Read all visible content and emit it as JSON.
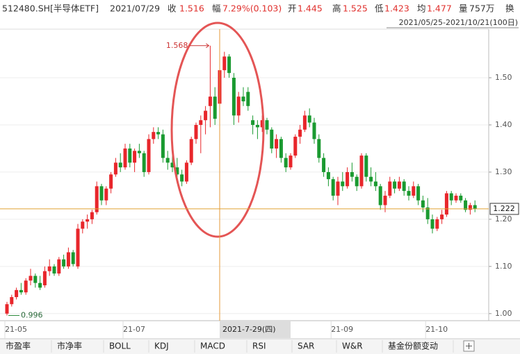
{
  "header": {
    "code": "512480.SH[半导体ETF]",
    "date": "2021/07/29",
    "close_label": "收",
    "close": 1.516,
    "change_label": "幅",
    "change": "7.29%(0.103)",
    "open_label": "开",
    "open": 1.445,
    "high_label": "高",
    "high": 1.525,
    "low_label": "低",
    "low": 1.423,
    "avg_label": "均",
    "avg": 1.477,
    "volume_label": "量",
    "volume": "757万",
    "turnover_label": "换",
    "range": "2021/05/25-2021/10/21(100日)"
  },
  "chart_data": {
    "type": "candlestick",
    "categories": [
      "21-05",
      null,
      null,
      null,
      null,
      null,
      null,
      null,
      null,
      null,
      null,
      null,
      null,
      null,
      null,
      null,
      null,
      null,
      null,
      null,
      null,
      null,
      null,
      null,
      null,
      "21-07",
      null,
      null,
      null,
      null,
      null,
      null,
      null,
      null,
      null,
      null,
      null,
      null,
      null,
      null,
      null,
      null,
      null,
      null,
      null,
      null,
      null,
      null,
      null,
      null,
      null,
      null,
      null,
      null,
      null,
      null,
      null,
      null,
      null,
      null,
      null,
      null,
      null,
      null,
      null,
      null,
      null,
      null,
      null,
      "21-09",
      null,
      null,
      null,
      null,
      null,
      null,
      null,
      null,
      null,
      null,
      null,
      null,
      null,
      null,
      null,
      null,
      null,
      null,
      null,
      "21-10",
      null,
      null,
      null,
      null,
      null,
      null,
      null,
      null,
      null,
      null
    ],
    "ohlc": [
      [
        1.0,
        1.025,
        0.996,
        1.02
      ],
      [
        1.02,
        1.04,
        1.015,
        1.035
      ],
      [
        1.035,
        1.055,
        1.03,
        1.05
      ],
      [
        1.05,
        1.065,
        1.04,
        1.045
      ],
      [
        1.045,
        1.075,
        1.04,
        1.07
      ],
      [
        1.07,
        1.095,
        1.06,
        1.08
      ],
      [
        1.08,
        1.085,
        1.055,
        1.065
      ],
      [
        1.065,
        1.08,
        1.05,
        1.055
      ],
      [
        1.06,
        1.1,
        1.055,
        1.09
      ],
      [
        1.09,
        1.115,
        1.08,
        1.1
      ],
      [
        1.1,
        1.105,
        1.08,
        1.085
      ],
      [
        1.085,
        1.12,
        1.08,
        1.115
      ],
      [
        1.115,
        1.125,
        1.095,
        1.1
      ],
      [
        1.1,
        1.14,
        1.095,
        1.13
      ],
      [
        1.13,
        1.135,
        1.1,
        1.105
      ],
      [
        1.1,
        1.19,
        1.095,
        1.18
      ],
      [
        1.18,
        1.2,
        1.17,
        1.195
      ],
      [
        1.195,
        1.21,
        1.18,
        1.2
      ],
      [
        1.2,
        1.22,
        1.19,
        1.215
      ],
      [
        1.215,
        1.28,
        1.21,
        1.27
      ],
      [
        1.27,
        1.275,
        1.23,
        1.24
      ],
      [
        1.24,
        1.27,
        1.23,
        1.265
      ],
      [
        1.265,
        1.3,
        1.255,
        1.295
      ],
      [
        1.295,
        1.33,
        1.29,
        1.32
      ],
      [
        1.32,
        1.34,
        1.3,
        1.31
      ],
      [
        1.31,
        1.36,
        1.305,
        1.35
      ],
      [
        1.35,
        1.36,
        1.31,
        1.32
      ],
      [
        1.32,
        1.35,
        1.3,
        1.345
      ],
      [
        1.345,
        1.36,
        1.33,
        1.34
      ],
      [
        1.34,
        1.345,
        1.29,
        1.3
      ],
      [
        1.3,
        1.38,
        1.295,
        1.37
      ],
      [
        1.37,
        1.395,
        1.36,
        1.385
      ],
      [
        1.385,
        1.395,
        1.37,
        1.38
      ],
      [
        1.38,
        1.39,
        1.32,
        1.33
      ],
      [
        1.33,
        1.345,
        1.305,
        1.32
      ],
      [
        1.32,
        1.335,
        1.3,
        1.31
      ],
      [
        1.31,
        1.33,
        1.29,
        1.295
      ],
      [
        1.295,
        1.305,
        1.27,
        1.28
      ],
      [
        1.28,
        1.325,
        1.275,
        1.32
      ],
      [
        1.32,
        1.375,
        1.315,
        1.37
      ],
      [
        1.37,
        1.405,
        1.36,
        1.4
      ],
      [
        1.4,
        1.42,
        1.34,
        1.41
      ],
      [
        1.41,
        1.44,
        1.38,
        1.43
      ],
      [
        1.44,
        1.568,
        1.395,
        1.46
      ],
      [
        1.46,
        1.48,
        1.4,
        1.413
      ],
      [
        1.445,
        1.525,
        1.423,
        1.516
      ],
      [
        1.516,
        1.555,
        1.5,
        1.545
      ],
      [
        1.545,
        1.55,
        1.5,
        1.51
      ],
      [
        1.5,
        1.51,
        1.4,
        1.42
      ],
      [
        1.42,
        1.47,
        1.405,
        1.46
      ],
      [
        1.46,
        1.48,
        1.44,
        1.45
      ],
      [
        1.47,
        1.48,
        1.43,
        1.44
      ],
      [
        1.41,
        1.42,
        1.38,
        1.4
      ],
      [
        1.4,
        1.41,
        1.37,
        1.395
      ],
      [
        1.395,
        1.42,
        1.385,
        1.41
      ],
      [
        1.41,
        1.415,
        1.38,
        1.39
      ],
      [
        1.39,
        1.395,
        1.34,
        1.35
      ],
      [
        1.35,
        1.38,
        1.33,
        1.37
      ],
      [
        1.37,
        1.375,
        1.32,
        1.33
      ],
      [
        1.33,
        1.34,
        1.3,
        1.31
      ],
      [
        1.31,
        1.34,
        1.305,
        1.335
      ],
      [
        1.335,
        1.38,
        1.33,
        1.375
      ],
      [
        1.375,
        1.4,
        1.36,
        1.39
      ],
      [
        1.39,
        1.43,
        1.385,
        1.42
      ],
      [
        1.42,
        1.435,
        1.395,
        1.405
      ],
      [
        1.405,
        1.415,
        1.36,
        1.37
      ],
      [
        1.37,
        1.38,
        1.32,
        1.33
      ],
      [
        1.33,
        1.34,
        1.29,
        1.3
      ],
      [
        1.3,
        1.31,
        1.27,
        1.285
      ],
      [
        1.285,
        1.29,
        1.24,
        1.25
      ],
      [
        1.25,
        1.29,
        1.23,
        1.28
      ],
      [
        1.28,
        1.3,
        1.26,
        1.27
      ],
      [
        1.27,
        1.31,
        1.265,
        1.3
      ],
      [
        1.3,
        1.32,
        1.28,
        1.29
      ],
      [
        1.29,
        1.295,
        1.26,
        1.27
      ],
      [
        1.27,
        1.34,
        1.265,
        1.335
      ],
      [
        1.335,
        1.34,
        1.28,
        1.29
      ],
      [
        1.29,
        1.31,
        1.27,
        1.28
      ],
      [
        1.28,
        1.3,
        1.26,
        1.27
      ],
      [
        1.27,
        1.275,
        1.22,
        1.23
      ],
      [
        1.23,
        1.26,
        1.215,
        1.25
      ],
      [
        1.25,
        1.29,
        1.245,
        1.28
      ],
      [
        1.28,
        1.285,
        1.255,
        1.265
      ],
      [
        1.265,
        1.29,
        1.26,
        1.28
      ],
      [
        1.28,
        1.285,
        1.25,
        1.26
      ],
      [
        1.26,
        1.27,
        1.24,
        1.25
      ],
      [
        1.25,
        1.28,
        1.245,
        1.27
      ],
      [
        1.27,
        1.275,
        1.23,
        1.24
      ],
      [
        1.24,
        1.25,
        1.215,
        1.225
      ],
      [
        1.225,
        1.245,
        1.19,
        1.2
      ],
      [
        1.2,
        1.21,
        1.17,
        1.18
      ],
      [
        1.18,
        1.205,
        1.175,
        1.2
      ],
      [
        1.2,
        1.22,
        1.19,
        1.21
      ],
      [
        1.21,
        1.26,
        1.205,
        1.255
      ],
      [
        1.255,
        1.26,
        1.23,
        1.24
      ],
      [
        1.24,
        1.255,
        1.235,
        1.25
      ],
      [
        1.25,
        1.255,
        1.235,
        1.24
      ],
      [
        1.24,
        1.245,
        1.215,
        1.22
      ],
      [
        1.22,
        1.235,
        1.21,
        1.23
      ],
      [
        1.23,
        1.24,
        1.215,
        1.222
      ]
    ],
    "up_color": "#e8262b",
    "down_color": "#1a9a30",
    "ylim": [
      0.985,
      1.603
    ],
    "yticks": [
      {
        "value": 1.0,
        "label": "1.00"
      },
      {
        "value": 1.1,
        "label": "1.10"
      },
      {
        "value": 1.2,
        "label": "1.20"
      },
      {
        "value": 1.3,
        "label": "1.30"
      },
      {
        "value": 1.4,
        "label": "1.40"
      },
      {
        "value": 1.5,
        "label": "1.50"
      }
    ],
    "grid": true,
    "max_label": 1.568,
    "min_label": 0.996,
    "crosshair_date": "2021-7-29(四)",
    "crosshair_price": 1.222
  },
  "tabs": [
    "市盈率",
    "市净率",
    "BOLL",
    "KDJ",
    "MACD",
    "RSI",
    "SAR",
    "W&R",
    "基金份额变动"
  ]
}
